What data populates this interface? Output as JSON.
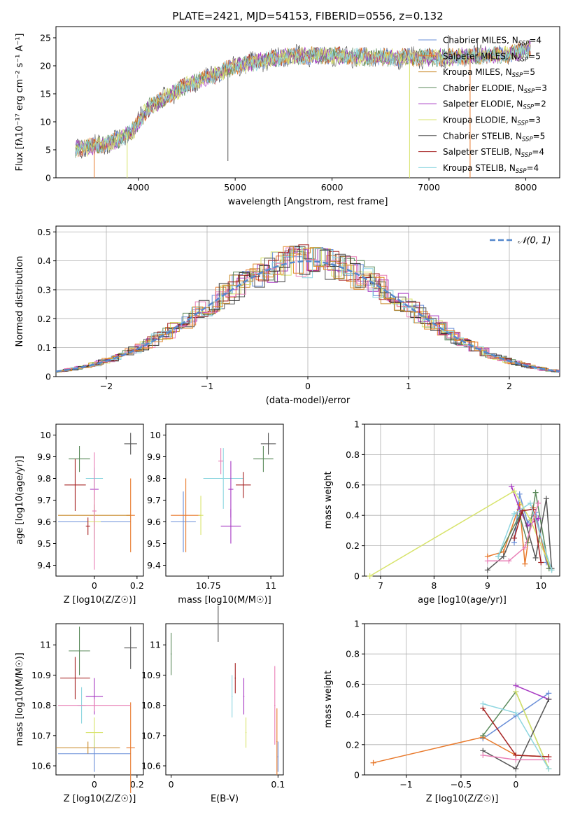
{
  "title": "PLATE=2421, MJD=54153, FIBERID=0556, z=0.132",
  "legend_entries": [
    {
      "name": "Chabrier MILES",
      "n": "4",
      "color": "#6a8fd8"
    },
    {
      "name": "Salpeter MILES",
      "n": "5",
      "color": "#e8792b"
    },
    {
      "name": "Kroupa MILES",
      "n": "5",
      "color": "#c98a2a"
    },
    {
      "name": "Chabrier ELODIE",
      "n": "3",
      "color": "#5b8a5b"
    },
    {
      "name": "Salpeter ELODIE",
      "n": "2",
      "color": "#a637c2"
    },
    {
      "name": "Kroupa ELODIE",
      "n": "3",
      "color": "#d7e36a"
    },
    {
      "name": "Chabrier STELIB",
      "n": "5",
      "color": "#555555"
    },
    {
      "name": "Salpeter STELIB",
      "n": "4",
      "color": "#a52020"
    },
    {
      "name": "Kroupa STELIB",
      "n": "4",
      "color": "#8ed6e0"
    }
  ],
  "extra_colors": [
    "#e87fb6",
    "#333333",
    "#e08a2c"
  ],
  "chart_data": [
    {
      "id": "spectrum",
      "type": "line",
      "xlabel": "wavelength [Angstrom, rest frame]",
      "ylabel": "Flux [fλ10⁻¹⁷ erg cm⁻² s⁻¹ A⁻¹]",
      "xlim": [
        3150,
        8350
      ],
      "ylim": [
        0,
        27
      ],
      "xticks": [
        4000,
        5000,
        6000,
        7000,
        8000
      ],
      "yticks": [
        0,
        5,
        10,
        15,
        20,
        25
      ],
      "continuum": {
        "x": [
          3350,
          3600,
          3800,
          3950,
          4100,
          4300,
          4500,
          4800,
          5000,
          5300,
          5600,
          6000,
          6400,
          6800,
          7200,
          7500,
          7800,
          8050
        ],
        "y": [
          5.2,
          5.8,
          6.8,
          8.5,
          12.5,
          14.5,
          16.5,
          18.5,
          20.0,
          21.0,
          21.8,
          21.8,
          21.5,
          21.5,
          21.5,
          21.8,
          22.0,
          23.0
        ]
      },
      "spikes": [
        {
          "x": 3545,
          "to": 0
        },
        {
          "x": 3885,
          "to": 0
        },
        {
          "x": 4925,
          "to": 3
        },
        {
          "x": 6800,
          "to": 0
        },
        {
          "x": 7425,
          "to": 0
        },
        {
          "x": 7200,
          "to": 25.5
        },
        {
          "x": 7500,
          "to": 25
        }
      ],
      "legend_position": "upper right",
      "grid": false
    },
    {
      "id": "residuals",
      "type": "histogram",
      "xlabel": "(data-model)/error",
      "ylabel": "Normed distribution",
      "xlim": [
        -2.5,
        2.5
      ],
      "ylim": [
        0,
        0.52
      ],
      "xticks": [
        -2,
        -1,
        0,
        1,
        2
      ],
      "yticks": [
        0,
        0.1,
        0.2,
        0.3,
        0.4,
        0.5
      ],
      "reference_label": "𝒩(0, 1)",
      "grid": true,
      "legend_position": "upper right"
    },
    {
      "id": "age_vs_Z",
      "type": "scatter",
      "xlabel": "Z [log10(Z/Z☉)]",
      "ylabel": "age [log10(age/yr)]",
      "xlim": [
        -0.18,
        0.23
      ],
      "ylim": [
        9.35,
        10.05
      ],
      "xticks": [
        0.0,
        0.2
      ],
      "yticks": [
        9.4,
        9.5,
        9.6,
        9.7,
        9.8,
        9.9,
        10.0
      ],
      "points": [
        {
          "x": 0.0,
          "xerr": 0.17,
          "y": 9.6,
          "yerr": 0.08,
          "c": 0
        },
        {
          "x": 0.17,
          "xerr": 0.02,
          "y": 9.63,
          "yerr": 0.17,
          "c": 1
        },
        {
          "x": 0.0,
          "xerr": 0.17,
          "y": 9.63,
          "yerr": 0.05,
          "c": 2
        },
        {
          "x": -0.07,
          "xerr": 0.05,
          "y": 9.89,
          "yerr": 0.06,
          "c": 3
        },
        {
          "x": 0.0,
          "xerr": 0.02,
          "y": 9.75,
          "yerr": 0.05,
          "c": 4
        },
        {
          "x": 0.0,
          "xerr": 0.03,
          "y": 9.6,
          "yerr": 0.13,
          "c": 5
        },
        {
          "x": 0.17,
          "xerr": 0.03,
          "y": 9.96,
          "yerr": 0.05,
          "c": 6
        },
        {
          "x": -0.03,
          "xerr": 0.01,
          "y": 9.58,
          "yerr": 0.04,
          "c": 7
        },
        {
          "x": -0.09,
          "xerr": 0.05,
          "y": 9.77,
          "yerr": 0.12,
          "c": 7
        },
        {
          "x": 0.0,
          "xerr": 0.04,
          "y": 9.8,
          "yerr": 0.05,
          "c": 8
        },
        {
          "x": 0.0,
          "xerr": 0.01,
          "y": 9.65,
          "yerr": 0.27,
          "c": 9
        }
      ]
    },
    {
      "id": "age_vs_mass",
      "type": "scatter",
      "xlabel": "mass [log10(M/M☉)]",
      "ylabel": "",
      "xlim": [
        10.58,
        11.05
      ],
      "ylim": [
        9.35,
        10.05
      ],
      "xticks": [
        10.75,
        11.0
      ],
      "yticks": [
        9.4,
        9.5,
        9.6,
        9.7,
        9.8,
        9.9,
        10.0
      ],
      "points": [
        {
          "x": 10.65,
          "xerr": 0.05,
          "y": 9.6,
          "yerr": 0.14,
          "c": 0
        },
        {
          "x": 10.66,
          "xerr": 0.06,
          "y": 9.63,
          "yerr": 0.17,
          "c": 1
        },
        {
          "x": 10.72,
          "xerr": 0.01,
          "y": 9.63,
          "yerr": 0.09,
          "c": 5
        },
        {
          "x": 10.81,
          "xerr": 0.08,
          "y": 9.8,
          "yerr": 0.14,
          "c": 8
        },
        {
          "x": 10.84,
          "xerr": 0.01,
          "y": 9.75,
          "yerr": 0.13,
          "c": 4
        },
        {
          "x": 10.84,
          "xerr": 0.04,
          "y": 9.58,
          "yerr": 0.08,
          "c": 4
        },
        {
          "x": 10.89,
          "xerr": 0.03,
          "y": 9.77,
          "yerr": 0.06,
          "c": 7
        },
        {
          "x": 10.97,
          "xerr": 0.04,
          "y": 9.89,
          "yerr": 0.06,
          "c": 3
        },
        {
          "x": 10.99,
          "xerr": 0.03,
          "y": 9.96,
          "yerr": 0.05,
          "c": 6
        },
        {
          "x": 10.8,
          "xerr": 0.01,
          "y": 9.88,
          "yerr": 0.06,
          "c": 9
        }
      ]
    },
    {
      "id": "weight_vs_age",
      "type": "line",
      "xlabel": "age [log10(age/yr)]",
      "ylabel": "mass weight",
      "xlim": [
        6.7,
        10.35
      ],
      "ylim": [
        0,
        1
      ],
      "xticks": [
        7,
        8,
        9,
        10
      ],
      "yticks": [
        0,
        0.2,
        0.4,
        0.6,
        0.8,
        1.0
      ],
      "grid": true,
      "series": [
        {
          "c": 0,
          "x": [
            9.5,
            9.6,
            9.75,
            9.9,
            10.1,
            10.2
          ],
          "y": [
            0.22,
            0.54,
            0.35,
            0.42,
            0.09,
            0.04
          ]
        },
        {
          "c": 1,
          "x": [
            9.0,
            9.3,
            9.6,
            9.7,
            9.85,
            10.15
          ],
          "y": [
            0.13,
            0.16,
            0.47,
            0.08,
            0.45,
            0.05
          ]
        },
        {
          "c": 3,
          "x": [
            9.2,
            9.6,
            9.75,
            9.9,
            10.15
          ],
          "y": [
            0.13,
            0.4,
            0.22,
            0.55,
            0.05
          ]
        },
        {
          "c": 4,
          "x": [
            9.45,
            9.6,
            9.75,
            9.95
          ],
          "y": [
            0.59,
            0.44,
            0.33,
            0.38
          ]
        },
        {
          "c": 5,
          "x": [
            6.8,
            9.5,
            9.8,
            10.2
          ],
          "y": [
            0.0,
            0.56,
            0.37,
            0.04
          ]
        },
        {
          "c": 6,
          "x": [
            9.0,
            9.3,
            9.65,
            9.9,
            10.1,
            10.2
          ],
          "y": [
            0.04,
            0.13,
            0.43,
            0.12,
            0.51,
            0.05
          ]
        },
        {
          "c": 7,
          "x": [
            9.5,
            9.65,
            9.85,
            10.0
          ],
          "y": [
            0.25,
            0.43,
            0.44,
            0.09
          ]
        },
        {
          "c": 8,
          "x": [
            9.2,
            9.5,
            9.8,
            10.2
          ],
          "y": [
            0.13,
            0.41,
            0.48,
            0.04
          ]
        },
        {
          "c": 9,
          "x": [
            9.0,
            9.4,
            9.7,
            9.95
          ],
          "y": [
            0.1,
            0.1,
            0.19,
            0.48
          ]
        }
      ]
    },
    {
      "id": "mass_vs_Z",
      "type": "scatter",
      "xlabel": "Z [log10(Z/Z☉)]",
      "ylabel": "mass [log10(M/M☉)]",
      "xlim": [
        -0.18,
        0.23
      ],
      "ylim": [
        10.57,
        11.07
      ],
      "xticks": [
        0.0,
        0.2
      ],
      "yticks": [
        10.6,
        10.7,
        10.8,
        10.9,
        11.0
      ],
      "points": [
        {
          "x": 0.0,
          "xerr": 0.17,
          "y": 10.64,
          "yerr": 0.06,
          "c": 0
        },
        {
          "x": 0.17,
          "xerr": 0.02,
          "y": 10.66,
          "yerr": 0.15,
          "c": 1
        },
        {
          "x": -0.03,
          "xerr": 0.15,
          "y": 10.66,
          "yerr": 0.02,
          "c": 2
        },
        {
          "x": -0.07,
          "xerr": 0.05,
          "y": 10.98,
          "yerr": 0.08,
          "c": 3
        },
        {
          "x": 0.0,
          "xerr": 0.04,
          "y": 10.83,
          "yerr": 0.06,
          "c": 4
        },
        {
          "x": 0.0,
          "xerr": 0.04,
          "y": 10.71,
          "yerr": 0.05,
          "c": 5
        },
        {
          "x": 0.17,
          "xerr": 0.03,
          "y": 10.99,
          "yerr": 0.07,
          "c": 6
        },
        {
          "x": -0.09,
          "xerr": 0.07,
          "y": 10.89,
          "yerr": 0.07,
          "c": 7
        },
        {
          "x": -0.06,
          "xerr": 0.02,
          "y": 10.8,
          "yerr": 0.06,
          "c": 8
        },
        {
          "x": 0.0,
          "xerr": 0.17,
          "y": 10.8,
          "yerr": 0.02,
          "c": 9
        }
      ]
    },
    {
      "id": "mass_vs_ebv",
      "type": "scatter",
      "xlabel": "E(B-V)",
      "ylabel": "",
      "xlim": [
        -0.005,
        0.105
      ],
      "ylim": [
        10.57,
        11.07
      ],
      "xticks": [
        0.0,
        0.1
      ],
      "yticks": [
        10.6,
        10.7,
        10.8,
        10.9,
        11.0
      ],
      "points": [
        {
          "x": 0.0,
          "xerr": 0.0005,
          "y": 10.97,
          "yerr": 0.07,
          "c": 3
        },
        {
          "x": 0.044,
          "xerr": 0.0005,
          "y": 11.07,
          "yerr": 0.06,
          "c": 6
        },
        {
          "x": 0.06,
          "xerr": 0.0005,
          "y": 10.89,
          "yerr": 0.05,
          "c": 7
        },
        {
          "x": 0.057,
          "xerr": 0.0005,
          "y": 10.83,
          "yerr": 0.07,
          "c": 8
        },
        {
          "x": 0.068,
          "xerr": 0.0005,
          "y": 10.83,
          "yerr": 0.06,
          "c": 4
        },
        {
          "x": 0.07,
          "xerr": 0.0005,
          "y": 10.71,
          "yerr": 0.05,
          "c": 5
        },
        {
          "x": 0.097,
          "xerr": 0.0005,
          "y": 10.8,
          "yerr": 0.13,
          "c": 9
        },
        {
          "x": 0.099,
          "xerr": 0.0005,
          "y": 10.68,
          "yerr": 0.11,
          "c": 1
        },
        {
          "x": 0.1,
          "xerr": 0.0005,
          "y": 10.63,
          "yerr": 0.05,
          "c": 0
        }
      ]
    },
    {
      "id": "weight_vs_Z",
      "type": "line",
      "xlabel": "Z [log10(Z/Z☉)]",
      "ylabel": "mass weight",
      "xlim": [
        -1.38,
        0.4
      ],
      "ylim": [
        0,
        1
      ],
      "xticks": [
        -1.0,
        -0.5,
        0.0
      ],
      "yticks": [
        0,
        0.2,
        0.4,
        0.6,
        0.8,
        1.0
      ],
      "grid": true,
      "series": [
        {
          "c": 0,
          "x": [
            -0.3,
            0.0,
            0.3
          ],
          "y": [
            0.24,
            0.39,
            0.54
          ]
        },
        {
          "c": 1,
          "x": [
            -1.3,
            -0.3,
            0.0,
            0.3
          ],
          "y": [
            0.08,
            0.25,
            0.13,
            0.12
          ]
        },
        {
          "c": 3,
          "x": [
            -0.3,
            0.0,
            0.3
          ],
          "y": [
            0.26,
            0.55,
            0.04
          ]
        },
        {
          "c": 4,
          "x": [
            0.0,
            0.3
          ],
          "y": [
            0.59,
            0.5
          ]
        },
        {
          "c": 5,
          "x": [
            0.0,
            0.3
          ],
          "y": [
            0.55,
            0.04
          ]
        },
        {
          "c": 6,
          "x": [
            -0.3,
            0.0,
            0.3
          ],
          "y": [
            0.16,
            0.04,
            0.5
          ]
        },
        {
          "c": 7,
          "x": [
            -0.3,
            0.0,
            0.3
          ],
          "y": [
            0.44,
            0.13,
            0.12
          ]
        },
        {
          "c": 8,
          "x": [
            -0.3,
            0.0,
            0.3
          ],
          "y": [
            0.47,
            0.41,
            0.04
          ]
        },
        {
          "c": 9,
          "x": [
            -0.3,
            0.0,
            0.3
          ],
          "y": [
            0.13,
            0.1,
            0.1
          ]
        }
      ]
    }
  ]
}
